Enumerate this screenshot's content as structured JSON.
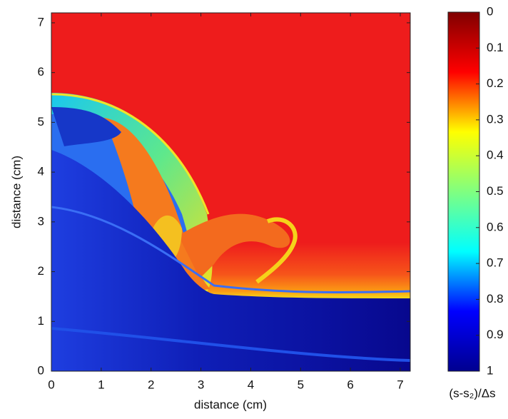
{
  "chart_data": {
    "type": "heatmap",
    "x_label": "distance (cm)",
    "y_label": "distance (cm)",
    "xlim": [
      0,
      7.2
    ],
    "ylim": [
      0,
      7.2
    ],
    "xticks": [
      0,
      1,
      2,
      3,
      4,
      5,
      6,
      7
    ],
    "yticks": [
      0,
      1,
      2,
      3,
      4,
      5,
      6,
      7
    ],
    "colorbar": {
      "label": "(s-s₂)/Δs",
      "colormap": "jet",
      "reversed": true,
      "lim": [
        0,
        1
      ],
      "ticks": [
        0,
        0.1,
        0.2,
        0.3,
        0.4,
        0.5,
        0.6,
        0.7,
        0.8,
        0.9,
        1
      ]
    }
  }
}
